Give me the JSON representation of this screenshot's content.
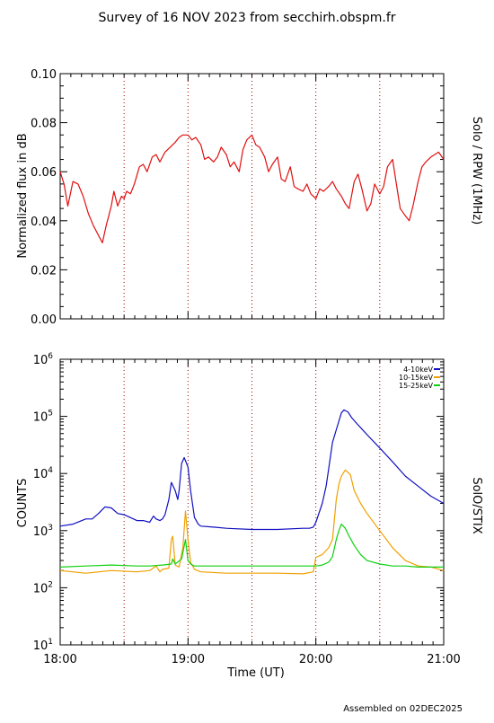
{
  "page": {
    "title": "Survey of 16 NOV 2023 from secchirh.obspm.fr",
    "footer": "Assembled on 02DEC2025"
  },
  "chart_data": [
    {
      "type": "line",
      "instrument_label": "Solo / RPW (1MHz)",
      "ylabel": "Normalized flux in dB",
      "xlabel": "",
      "x_unit": "hours UT",
      "xlim": [
        18.0,
        21.0
      ],
      "ylim": [
        0.0,
        0.1
      ],
      "yticks": [
        0.0,
        0.02,
        0.04,
        0.06,
        0.08,
        0.1
      ],
      "ytick_labels": [
        "0.00",
        "0.02",
        "0.04",
        "0.06",
        "0.08",
        "0.10"
      ],
      "xticks": [
        18.0,
        19.0,
        20.0,
        21.0
      ],
      "xtick_labels": [],
      "vertical_dotted_lines": [
        18.5,
        19.0,
        19.5,
        20.0,
        20.5
      ],
      "series": [
        {
          "color": "#e01010",
          "x": [
            18.0,
            18.03,
            18.06,
            18.1,
            18.14,
            18.18,
            18.22,
            18.26,
            18.3,
            18.33,
            18.36,
            18.4,
            18.42,
            18.45,
            18.48,
            18.5,
            18.52,
            18.55,
            18.58,
            18.62,
            18.65,
            18.68,
            18.72,
            18.75,
            18.78,
            18.82,
            18.86,
            18.9,
            18.93,
            18.96,
            19.0,
            19.03,
            19.06,
            19.1,
            19.13,
            19.16,
            19.2,
            19.23,
            19.26,
            19.3,
            19.33,
            19.36,
            19.4,
            19.43,
            19.46,
            19.5,
            19.53,
            19.56,
            19.6,
            19.63,
            19.66,
            19.7,
            19.73,
            19.76,
            19.8,
            19.83,
            19.86,
            19.9,
            19.93,
            19.96,
            20.0,
            20.03,
            20.06,
            20.1,
            20.13,
            20.16,
            20.2,
            20.23,
            20.26,
            20.3,
            20.33,
            20.36,
            20.4,
            20.43,
            20.46,
            20.5,
            20.53,
            20.56,
            20.6,
            20.63,
            20.66,
            20.7,
            20.73,
            20.76,
            20.8,
            20.83,
            20.86,
            20.9,
            20.93,
            20.96,
            21.0
          ],
          "y": [
            0.06,
            0.055,
            0.046,
            0.056,
            0.055,
            0.05,
            0.043,
            0.038,
            0.034,
            0.031,
            0.038,
            0.046,
            0.052,
            0.046,
            0.05,
            0.049,
            0.052,
            0.051,
            0.055,
            0.062,
            0.063,
            0.06,
            0.066,
            0.067,
            0.064,
            0.068,
            0.07,
            0.072,
            0.074,
            0.075,
            0.075,
            0.073,
            0.074,
            0.071,
            0.065,
            0.066,
            0.064,
            0.066,
            0.07,
            0.067,
            0.062,
            0.064,
            0.06,
            0.069,
            0.073,
            0.075,
            0.071,
            0.07,
            0.066,
            0.06,
            0.063,
            0.066,
            0.057,
            0.056,
            0.062,
            0.054,
            0.053,
            0.052,
            0.055,
            0.051,
            0.049,
            0.053,
            0.052,
            0.054,
            0.056,
            0.053,
            0.05,
            0.047,
            0.045,
            0.056,
            0.059,
            0.053,
            0.044,
            0.047,
            0.055,
            0.051,
            0.054,
            0.062,
            0.065,
            0.055,
            0.045,
            0.042,
            0.04,
            0.046,
            0.056,
            0.062,
            0.064,
            0.066,
            0.067,
            0.068,
            0.065
          ]
        }
      ]
    },
    {
      "type": "line",
      "instrument_label": "SolO/STIX",
      "ylabel": "COUNTS",
      "xlabel": "Time (UT)",
      "x_unit": "hours UT",
      "xlim": [
        18.0,
        21.0
      ],
      "ylim": [
        10,
        1000000
      ],
      "yscale": "log",
      "yticks": [
        10,
        100,
        1000,
        10000,
        100000,
        1000000
      ],
      "ytick_labels": [
        {
          "base": "10",
          "exp": "1"
        },
        {
          "base": "10",
          "exp": "2"
        },
        {
          "base": "10",
          "exp": "3"
        },
        {
          "base": "10",
          "exp": "4"
        },
        {
          "base": "10",
          "exp": "5"
        },
        {
          "base": "10",
          "exp": "6"
        }
      ],
      "xticks": [
        18.0,
        19.0,
        20.0,
        21.0
      ],
      "xtick_labels": [
        "18:00",
        "19:00",
        "20:00",
        "21:00"
      ],
      "vertical_dotted_lines": [
        18.5,
        19.0,
        19.5,
        20.0,
        20.5
      ],
      "legend_position": "top-right",
      "series": [
        {
          "name": "4-10keV",
          "color": "#1010c0",
          "x": [
            18.0,
            18.1,
            18.2,
            18.25,
            18.3,
            18.35,
            18.4,
            18.45,
            18.5,
            18.6,
            18.65,
            18.7,
            18.73,
            18.75,
            18.78,
            18.8,
            18.82,
            18.85,
            18.87,
            18.9,
            18.92,
            18.93,
            18.95,
            18.97,
            19.0,
            19.02,
            19.05,
            19.08,
            19.1,
            19.2,
            19.3,
            19.5,
            19.7,
            19.9,
            19.95,
            19.98,
            20.0,
            20.05,
            20.08,
            20.1,
            20.13,
            20.17,
            20.2,
            20.22,
            20.25,
            20.28,
            20.32,
            20.36,
            20.4,
            20.5,
            20.6,
            20.7,
            20.8,
            20.9,
            21.0
          ],
          "y": [
            1200,
            1300,
            1600,
            1600,
            2000,
            2600,
            2500,
            2000,
            1900,
            1500,
            1500,
            1400,
            1800,
            1600,
            1500,
            1600,
            1900,
            3500,
            7000,
            5000,
            3500,
            5000,
            15000,
            19000,
            13000,
            5000,
            1700,
            1300,
            1200,
            1150,
            1100,
            1050,
            1050,
            1100,
            1100,
            1150,
            1400,
            3000,
            6000,
            12000,
            35000,
            70000,
            115000,
            130000,
            120000,
            95000,
            75000,
            60000,
            48000,
            28000,
            16000,
            9000,
            6000,
            4000,
            3000
          ]
        },
        {
          "name": "10-15keV",
          "color": "#f0a000",
          "x": [
            18.0,
            18.2,
            18.4,
            18.6,
            18.7,
            18.75,
            18.78,
            18.8,
            18.85,
            18.87,
            18.88,
            18.9,
            18.93,
            18.96,
            18.98,
            19.0,
            19.02,
            19.05,
            19.1,
            19.3,
            19.5,
            19.7,
            19.9,
            19.98,
            20.0,
            20.05,
            20.1,
            20.13,
            20.16,
            20.18,
            20.2,
            20.23,
            20.27,
            20.3,
            20.35,
            20.4,
            20.5,
            20.6,
            20.7,
            20.8,
            20.9,
            21.0
          ],
          "y": [
            200,
            180,
            200,
            190,
            200,
            240,
            190,
            210,
            220,
            700,
            800,
            250,
            230,
            500,
            2200,
            700,
            280,
            210,
            190,
            180,
            180,
            180,
            175,
            190,
            340,
            380,
            500,
            700,
            3500,
            6500,
            9000,
            11500,
            9500,
            5000,
            3000,
            2000,
            1000,
            500,
            300,
            240,
            230,
            200
          ]
        },
        {
          "name": "15-25keV",
          "color": "#10d010",
          "x": [
            18.0,
            18.2,
            18.4,
            18.6,
            18.7,
            18.8,
            18.87,
            18.88,
            18.9,
            18.95,
            18.98,
            19.0,
            19.02,
            19.05,
            19.1,
            19.3,
            19.5,
            19.7,
            19.9,
            20.0,
            20.05,
            20.1,
            20.13,
            20.16,
            20.18,
            20.2,
            20.23,
            20.26,
            20.3,
            20.35,
            20.4,
            20.5,
            20.6,
            20.7,
            20.8,
            20.9,
            21.0
          ],
          "y": [
            230,
            240,
            250,
            240,
            240,
            250,
            260,
            320,
            260,
            320,
            700,
            300,
            260,
            240,
            240,
            240,
            240,
            240,
            240,
            240,
            250,
            280,
            350,
            700,
            1000,
            1300,
            1100,
            800,
            550,
            380,
            300,
            260,
            240,
            240,
            230,
            230,
            230
          ]
        }
      ]
    }
  ]
}
